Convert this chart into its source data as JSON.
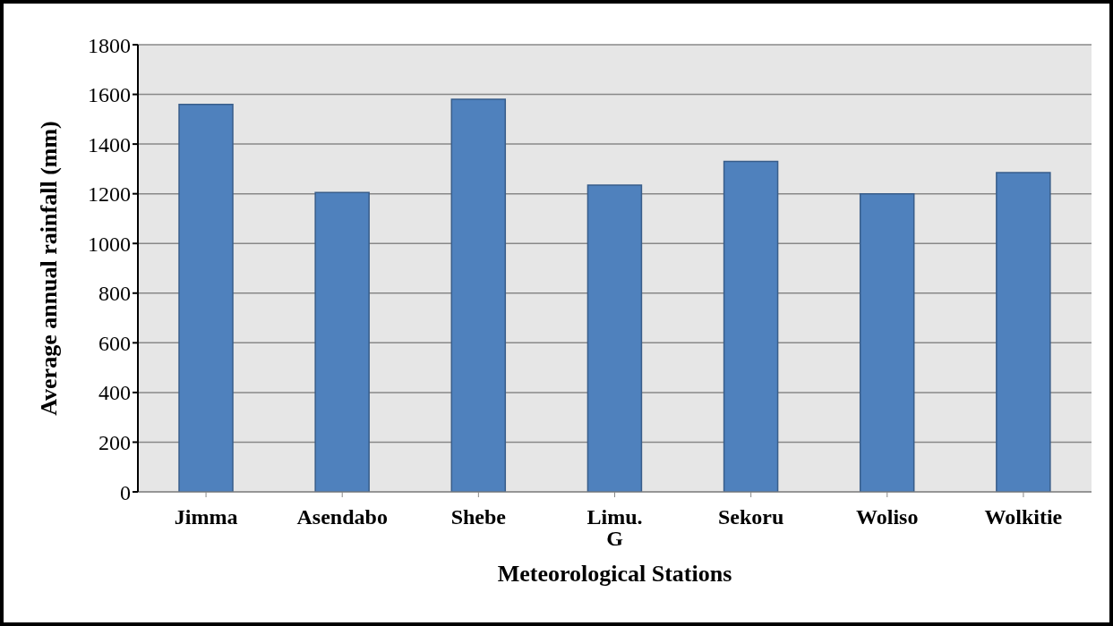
{
  "chart_data": {
    "type": "bar",
    "xlabel": "Meteorological Stations",
    "ylabel": "Average annual rainfall (mm)",
    "categories": [
      "Jimma",
      "Asendabo",
      "Shebe",
      "Limu. G",
      "Sekoru",
      "Woliso",
      "Wolkitie"
    ],
    "values": [
      1560,
      1205,
      1580,
      1235,
      1330,
      1200,
      1285
    ],
    "color": "#4f81bd",
    "ylim": [
      0,
      1800
    ],
    "yticks": [
      0,
      200,
      400,
      600,
      800,
      1000,
      1200,
      1400,
      1600,
      1800
    ],
    "grid": "y"
  }
}
